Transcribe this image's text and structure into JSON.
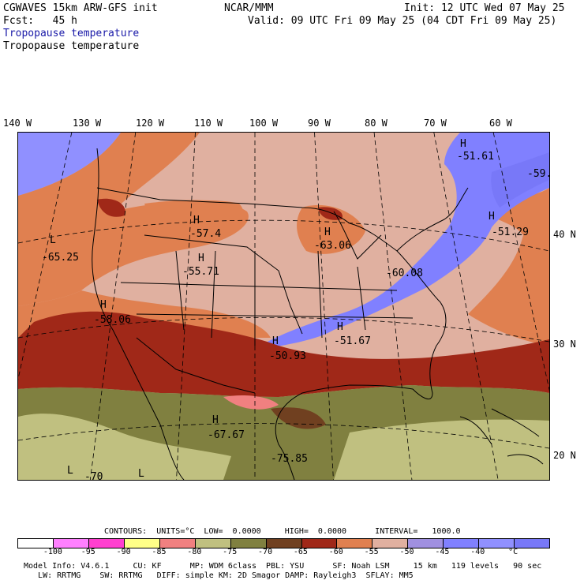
{
  "header": {
    "model": "CGWAVES 15km ARW-GFS init",
    "org": "NCAR/MMM",
    "init": "Init: 12 UTC Wed 07 May 25",
    "fcst": "Fcst:   45 h",
    "valid": "Valid: 09 UTC Fri 09 May 25 (04 CDT Fri 09 May 25)",
    "field1": "Tropopause temperature",
    "field2": "Tropopause temperature"
  },
  "axes": {
    "lon_labels": [
      "140 W",
      "130 W",
      "120 W",
      "110 W",
      "100 W",
      "90 W",
      "80 W",
      "70 W",
      "60 W"
    ],
    "lat_labels": [
      "40 N",
      "30 N",
      "20 N"
    ]
  },
  "map_labels": [
    {
      "letter": "H",
      "value": "-51.61"
    },
    {
      "letter": "",
      "value": "-59."
    },
    {
      "letter": "H",
      "value": "-57.4"
    },
    {
      "letter": "H",
      "value": "-63.06"
    },
    {
      "letter": "H",
      "value": "-51.29"
    },
    {
      "letter": "L",
      "value": "-65.25"
    },
    {
      "letter": "H",
      "value": "-55.71"
    },
    {
      "letter": "",
      "value": "-60.08"
    },
    {
      "letter": "H",
      "value": "-58.06"
    },
    {
      "letter": "H",
      "value": "-50.93"
    },
    {
      "letter": "H",
      "value": "-51.67"
    },
    {
      "letter": "H",
      "value": "-67.67"
    },
    {
      "letter": "",
      "value": "-75.85"
    },
    {
      "letter": "L",
      "value": ""
    },
    {
      "letter": "L",
      "value": ""
    },
    {
      "letter": "L",
      "value": "-70"
    }
  ],
  "contours": {
    "line": "CONTOURS:  UNITS=°C  LOW=  0.0000     HIGH=  0.0000      INTERVAL=   1000.0"
  },
  "colorbar": {
    "colors": [
      "#ffffff",
      "#ff80ff",
      "#ff40d0",
      "#ffff88",
      "#f08080",
      "#c0c080",
      "#808040",
      "#704020",
      "#a02818",
      "#e08050",
      "#e0b0a0",
      "#a090e0",
      "#8080ff",
      "#9090ff",
      "#7878f8"
    ],
    "ticks": [
      "-100",
      "-95",
      "-90",
      "-85",
      "-80",
      "-75",
      "-70",
      "-65",
      "-60",
      "-55",
      "-50",
      "-45",
      "-40",
      "°C"
    ]
  },
  "model_info": {
    "line1": "Model Info: V4.6.1     CU: KF      MP: WDM 6class  PBL: YSU      SF: Noah LSM     15 km   119 levels   90 sec",
    "line2": "   LW: RRTMG    SW: RRTMG   DIFF: simple KM: 2D Smagor DAMP: Rayleigh3  SFLAY: MM5"
  }
}
